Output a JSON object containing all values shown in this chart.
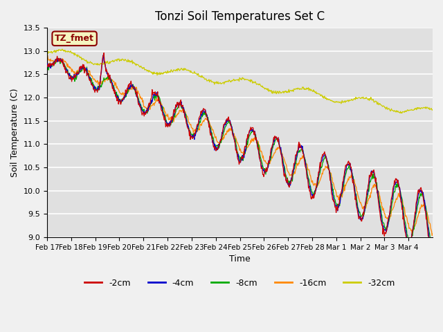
{
  "title": "Tonzi Soil Temperatures Set C",
  "xlabel": "Time",
  "ylabel": "Soil Temperature (C)",
  "ylim": [
    9.0,
    13.5
  ],
  "annotation": "TZ_fmet",
  "legend_labels": [
    "-2cm",
    "-4cm",
    "-8cm",
    "-16cm",
    "-32cm"
  ],
  "line_colors": [
    "#cc0000",
    "#0000cc",
    "#00aa00",
    "#ff8800",
    "#cccc00"
  ],
  "xtick_labels": [
    "Feb 17",
    "Feb 18",
    "Feb 19",
    "Feb 20",
    "Feb 21",
    "Feb 22",
    "Feb 23",
    "Feb 24",
    "Feb 25",
    "Feb 26",
    "Feb 27",
    "Feb 28",
    "Mar 1",
    "Mar 2",
    "Mar 3",
    "Mar 4"
  ],
  "yticks": [
    9.0,
    9.5,
    10.0,
    10.5,
    11.0,
    11.5,
    12.0,
    12.5,
    13.0,
    13.5
  ],
  "n_days": 16
}
